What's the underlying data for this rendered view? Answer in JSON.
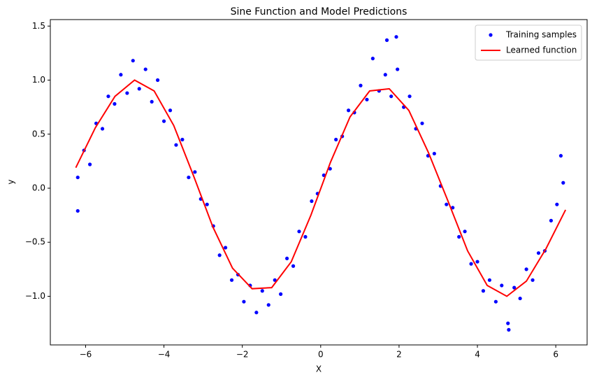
{
  "chart_data": {
    "type": "scatter",
    "title": "Sine Function and Model Predictions",
    "x_label": "X",
    "y_label": "y",
    "legend": "upper right",
    "xlim": [
      -6.9,
      6.8
    ],
    "ylim": [
      -1.45,
      1.56
    ],
    "xticks": [
      {
        "value": -6,
        "label": "−6"
      },
      {
        "value": -4,
        "label": "−4"
      },
      {
        "value": -2,
        "label": "−2"
      },
      0,
      2,
      4,
      6
    ],
    "yticks": [
      {
        "value": -1.0,
        "label": "−1.0"
      },
      {
        "value": -0.5,
        "label": "−0.5"
      },
      {
        "value": 0.0,
        "label": "0.0"
      },
      {
        "value": 0.5,
        "label": "0.5"
      },
      {
        "value": 1.0,
        "label": "1.0"
      },
      {
        "value": 1.5,
        "label": "1.5"
      }
    ],
    "series": [
      {
        "name": "Training samples",
        "type": "scatter",
        "color": "#0000ff",
        "x": [
          -6.2,
          -6.04,
          -5.89,
          -5.73,
          -5.57,
          -5.42,
          -5.26,
          -5.1,
          -4.94,
          -4.79,
          -4.63,
          -4.47,
          -4.31,
          -4.16,
          -4.0,
          -3.84,
          -3.69,
          -3.53,
          -3.37,
          -3.21,
          -3.06,
          -2.9,
          -2.74,
          -2.58,
          -2.43,
          -2.27,
          -2.11,
          -1.96,
          -1.8,
          -1.64,
          -1.49,
          -1.33,
          -1.17,
          -1.02,
          -0.86,
          -0.7,
          -0.55,
          -0.39,
          -0.23,
          -0.08,
          0.08,
          0.24,
          0.39,
          0.55,
          0.71,
          0.86,
          1.02,
          1.18,
          1.33,
          1.49,
          1.65,
          1.8,
          1.96,
          2.12,
          2.27,
          2.43,
          2.59,
          2.74,
          2.9,
          3.06,
          3.21,
          3.37,
          3.53,
          3.68,
          3.84,
          4.0,
          4.15,
          4.31,
          4.47,
          4.62,
          4.78,
          4.94,
          5.09,
          5.25,
          5.41,
          5.56,
          5.72,
          5.88,
          6.03,
          6.19,
          1.93,
          1.69,
          -6.2,
          6.13,
          4.8
        ],
        "values": [
          0.1,
          0.35,
          0.22,
          0.6,
          0.55,
          0.85,
          0.78,
          1.05,
          0.88,
          1.18,
          0.92,
          1.1,
          0.8,
          1.0,
          0.62,
          0.72,
          0.4,
          0.45,
          0.1,
          0.15,
          -0.1,
          -0.15,
          -0.35,
          -0.62,
          -0.55,
          -0.85,
          -0.8,
          -1.05,
          -0.9,
          -1.15,
          -0.95,
          -1.08,
          -0.85,
          -0.98,
          -0.65,
          -0.72,
          -0.4,
          -0.45,
          -0.12,
          -0.05,
          0.12,
          0.18,
          0.45,
          0.48,
          0.72,
          0.7,
          0.95,
          0.82,
          1.2,
          0.9,
          1.05,
          0.85,
          1.1,
          0.75,
          0.85,
          0.55,
          0.6,
          0.3,
          0.32,
          0.02,
          -0.15,
          -0.18,
          -0.45,
          -0.4,
          -0.7,
          -0.68,
          -0.95,
          -0.85,
          -1.05,
          -0.9,
          -1.25,
          -0.92,
          -1.02,
          -0.75,
          -0.85,
          -0.6,
          -0.58,
          -0.3,
          -0.15,
          0.05,
          1.4,
          1.37,
          -0.21,
          0.3,
          -1.31
        ]
      },
      {
        "name": "Learned function",
        "type": "line",
        "color": "#ff0000",
        "x": [
          -6.25,
          -5.75,
          -5.25,
          -4.75,
          -4.25,
          -3.75,
          -3.25,
          -2.75,
          -2.25,
          -1.75,
          -1.25,
          -0.75,
          -0.25,
          0.25,
          0.75,
          1.25,
          1.75,
          2.25,
          2.75,
          3.25,
          3.75,
          4.25,
          4.75,
          5.25,
          5.75,
          6.25
        ],
        "values": [
          0.19,
          0.56,
          0.85,
          1.0,
          0.9,
          0.58,
          0.12,
          -0.36,
          -0.74,
          -0.93,
          -0.92,
          -0.68,
          -0.25,
          0.24,
          0.66,
          0.9,
          0.92,
          0.72,
          0.33,
          -0.12,
          -0.58,
          -0.9,
          -1.0,
          -0.86,
          -0.56,
          -0.2
        ]
      }
    ]
  }
}
